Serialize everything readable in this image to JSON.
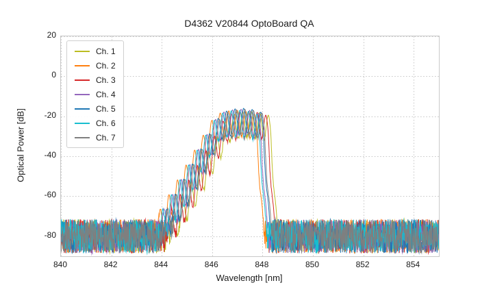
{
  "chart_data": {
    "type": "line",
    "title": "D4362 V20844 OptoBoard QA",
    "xlabel": "Wavelength [nm]",
    "ylabel": "Optical Power [dB]",
    "xlim": [
      840,
      855
    ],
    "ylim": [
      -90,
      20
    ],
    "xticks": [
      840,
      842,
      844,
      846,
      848,
      850,
      852,
      854
    ],
    "yticks": [
      20,
      0,
      -20,
      -40,
      -60,
      -80
    ],
    "grid": true,
    "grid_color": "#c8c8c8",
    "frame_color": "#c9c9c9",
    "background": "#ffffff",
    "legend_position": "upper left",
    "mode_spacing_nm": 0.34,
    "noise_band_db": [
      -71.5,
      -88.5
    ],
    "series": [
      {
        "name": "Ch. 1",
        "color": "#bcbd22",
        "center_nm": 847.55,
        "peak_db": -17.5,
        "seed": 1
      },
      {
        "name": "Ch. 2",
        "color": "#ff7f0e",
        "center_nm": 847.0,
        "peak_db": -17.0,
        "seed": 2
      },
      {
        "name": "Ch. 3",
        "color": "#d62728",
        "center_nm": 847.45,
        "peak_db": -17.5,
        "seed": 3
      },
      {
        "name": "Ch. 4",
        "color": "#9467bd",
        "center_nm": 847.15,
        "peak_db": -16.5,
        "seed": 4
      },
      {
        "name": "Ch. 5",
        "color": "#1f77b4",
        "center_nm": 847.25,
        "peak_db": -16.0,
        "seed": 5
      },
      {
        "name": "Ch. 6",
        "color": "#17becf",
        "center_nm": 847.1,
        "peak_db": -17.0,
        "seed": 6
      },
      {
        "name": "Ch. 7",
        "color": "#7f7f7f",
        "center_nm": 847.3,
        "peak_db": -16.5,
        "seed": 7
      }
    ]
  }
}
